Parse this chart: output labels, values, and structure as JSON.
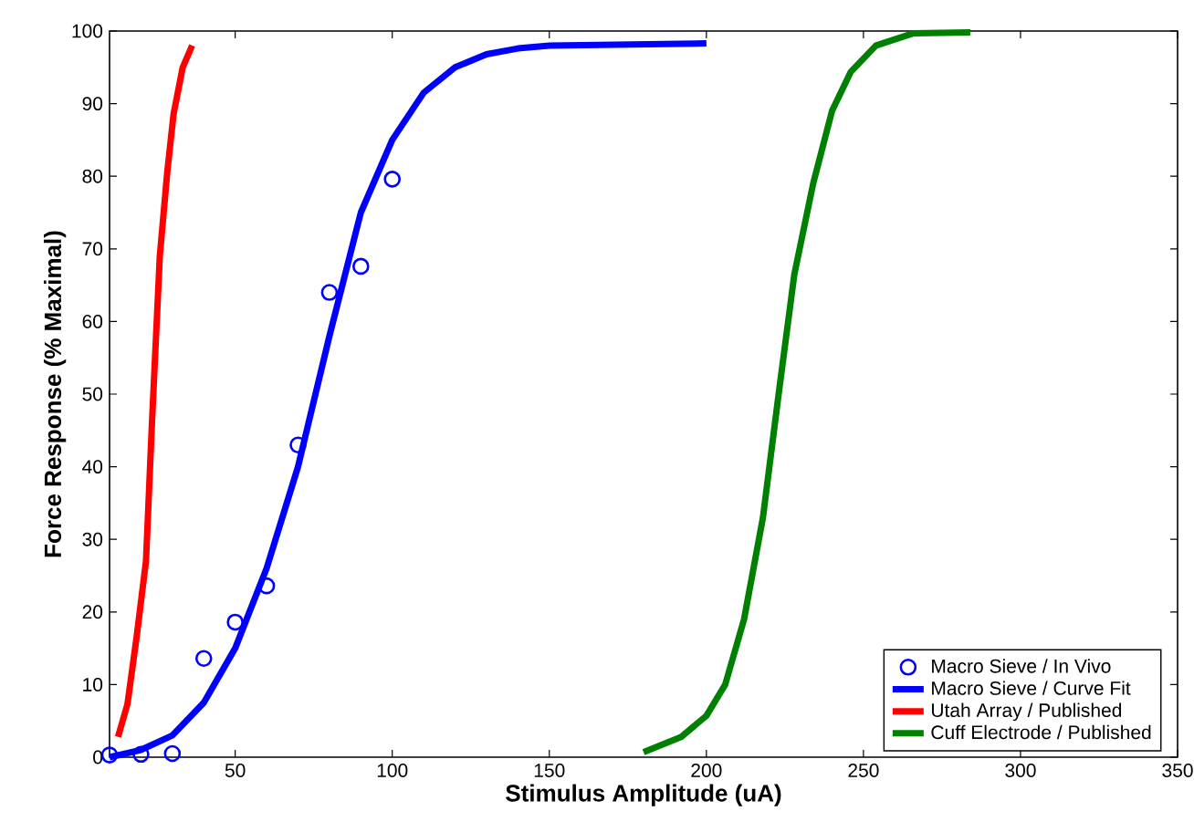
{
  "chart_data": {
    "type": "line",
    "xlabel": "Stimulus Amplitude (uA)",
    "ylabel": "Force Response (% Maximal)",
    "xlim": [
      10,
      350
    ],
    "xticks": [
      50,
      100,
      150,
      200,
      250,
      300,
      350
    ],
    "ylim": [
      0,
      100
    ],
    "yticks": [
      0,
      10,
      20,
      30,
      40,
      50,
      60,
      70,
      80,
      90,
      100
    ],
    "legend": "bottom right",
    "grid": false,
    "series": [
      {
        "name": "Macro Sieve / In Vivo",
        "type": "scatter",
        "marker": "circle",
        "color": "#0000ff",
        "x": [
          10,
          20,
          30,
          40,
          50,
          60,
          70,
          80,
          90,
          100
        ],
        "values": [
          0.3,
          0.4,
          0.5,
          13.6,
          18.6,
          23.6,
          43,
          64,
          67.6,
          79.6
        ]
      },
      {
        "name": "Macro Sieve / Curve Fit",
        "color": "#0000ff",
        "x": [
          10,
          20,
          30,
          40,
          50,
          60,
          70,
          80,
          90,
          100,
          110,
          120,
          130,
          140,
          150,
          200
        ],
        "values": [
          0,
          1,
          3,
          7.5,
          15,
          26,
          40,
          58,
          75,
          85,
          91.5,
          95,
          96.8,
          97.6,
          98,
          98.3
        ]
      },
      {
        "name": "Utah Array / Published",
        "color": "#ff0000",
        "x": [
          12.7,
          15.7,
          18.6,
          21.6,
          23.5,
          26,
          28.4,
          30.4,
          33.3,
          36.3
        ],
        "values": [
          2.8,
          7.3,
          16.5,
          27,
          46,
          69,
          80.7,
          88.6,
          95,
          98
        ]
      },
      {
        "name": "Cuff Electrode / Published",
        "color": "#008000",
        "x": [
          180,
          192,
          200,
          206,
          212,
          218,
          223,
          228,
          234,
          240,
          246,
          254,
          266,
          284
        ],
        "values": [
          0.7,
          2.8,
          5.7,
          10,
          19,
          33,
          50,
          66.5,
          79,
          89,
          94.4,
          98,
          99.7,
          99.8
        ]
      }
    ]
  }
}
